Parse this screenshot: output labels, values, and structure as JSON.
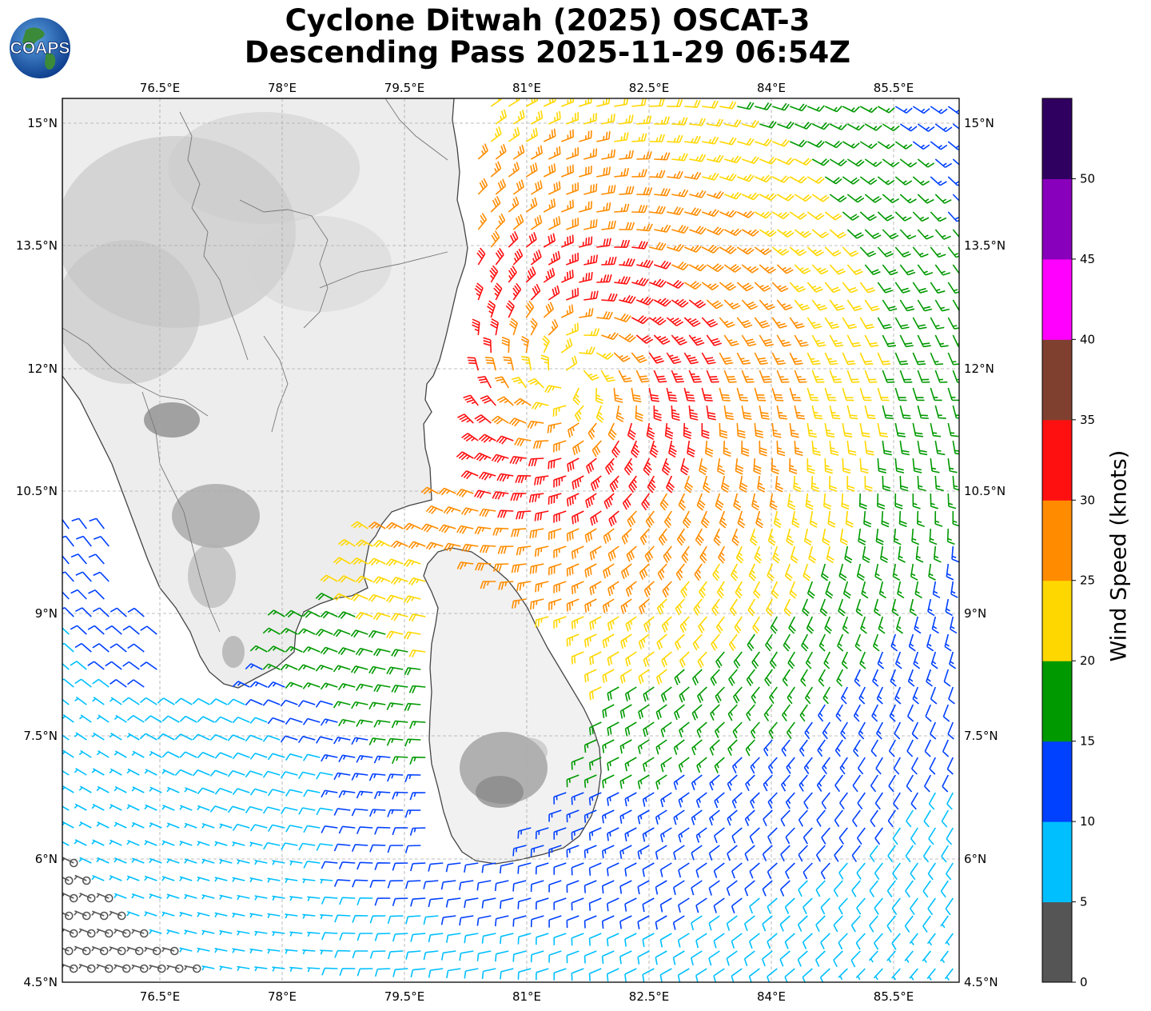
{
  "title": {
    "line1": "Cyclone Ditwah (2025) OSCAT-3",
    "line2": "Descending Pass 2025-11-29 06:54Z"
  },
  "logo": {
    "text": "COAPS"
  },
  "map": {
    "lon_range": [
      75.3,
      86.3
    ],
    "lat_range": [
      4.5,
      15.3
    ],
    "lon_ticks": [
      "76.5°E",
      "78°E",
      "79.5°E",
      "81°E",
      "82.5°E",
      "84°E",
      "85.5°E"
    ],
    "lat_ticks": [
      "15°N",
      "13.5°N",
      "12°N",
      "10.5°N",
      "9°N",
      "7.5°N",
      "6°N",
      "4.5°N"
    ],
    "storm_center": {
      "lat": 11.9,
      "lon": 81.5
    }
  },
  "colorbar": {
    "label": "Wind Speed (knots)",
    "ticks": [
      "0",
      "5",
      "10",
      "15",
      "20",
      "25",
      "30",
      "35",
      "40",
      "45",
      "50"
    ],
    "bins": [
      {
        "min": 0,
        "max": 5,
        "color": "#555555"
      },
      {
        "min": 5,
        "max": 10,
        "color": "#00bfff"
      },
      {
        "min": 10,
        "max": 15,
        "color": "#0040ff"
      },
      {
        "min": 15,
        "max": 20,
        "color": "#009900"
      },
      {
        "min": 20,
        "max": 25,
        "color": "#ffd700"
      },
      {
        "min": 25,
        "max": 30,
        "color": "#ff8c00"
      },
      {
        "min": 30,
        "max": 35,
        "color": "#ff1010"
      },
      {
        "min": 35,
        "max": 40,
        "color": "#804030"
      },
      {
        "min": 40,
        "max": 45,
        "color": "#ff00ff"
      },
      {
        "min": 45,
        "max": 50,
        "color": "#8800bb"
      },
      {
        "min": 50,
        "max": 55,
        "color": "#300060"
      }
    ]
  }
}
